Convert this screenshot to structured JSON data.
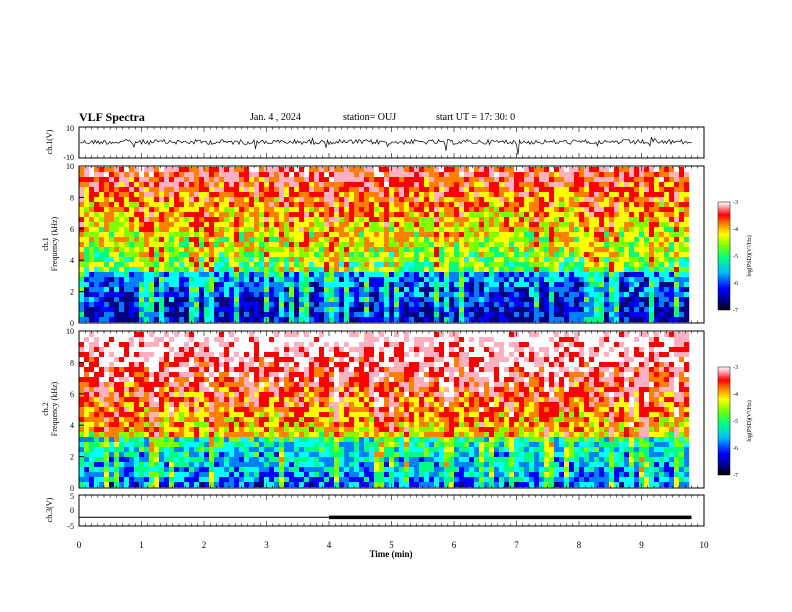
{
  "header": {
    "title": "VLF Spectra",
    "date": "Jan. 4 , 2024",
    "station": "station= OUJ",
    "start": "start UT = 17: 30: 0"
  },
  "colors": {
    "colormap": [
      "#000080",
      "#0000ff",
      "#0080ff",
      "#00ffff",
      "#00ff80",
      "#80ff00",
      "#ffff00",
      "#ff8000",
      "#ff0000",
      "#ffb0c0",
      "#ffffff"
    ],
    "waveform": "#000000"
  },
  "chart_data": [
    {
      "type": "line",
      "panel": "ch1-waveform",
      "ylabel": "ch.1(V)",
      "ylim": [
        -10,
        10
      ],
      "yticks": [
        "10",
        "-10"
      ],
      "x": [
        0,
        10
      ],
      "description_of_values": "noisy waveform around 0 V with spikes",
      "values": [
        0,
        0
      ]
    },
    {
      "type": "heatmap",
      "panel": "ch1-spectrogram",
      "ylabel": "ch.1\nFrequency (kHz)",
      "ylim": [
        0,
        10
      ],
      "yticks": [
        "0",
        "2",
        "4",
        "6",
        "8",
        "10"
      ],
      "xlim": [
        0,
        10
      ],
      "colorbar": {
        "label": "log(PSD)(V²/Hz)",
        "range": [
          -7,
          -3
        ],
        "ticks": [
          "-3",
          "-4",
          "-5",
          "-6",
          "-7"
        ]
      }
    },
    {
      "type": "heatmap",
      "panel": "ch2-spectrogram",
      "ylabel": "ch.2\nFrequency (kHz)",
      "ylim": [
        0,
        10
      ],
      "yticks": [
        "0",
        "2",
        "4",
        "6",
        "8",
        "10"
      ],
      "xlim": [
        0,
        10
      ],
      "colorbar": {
        "label": "log(PSD)(V²/Hz)",
        "range": [
          -7,
          -3
        ],
        "ticks": [
          "-3",
          "-4",
          "-5",
          "-6",
          "-7"
        ]
      }
    },
    {
      "type": "line",
      "panel": "ch3-level",
      "ylabel": "ch.3(V)",
      "ylim": [
        -5,
        5
      ],
      "yticks": [
        "5",
        "0",
        "-5"
      ],
      "x": [
        0,
        4,
        4,
        9.8
      ],
      "values": [
        -2.2,
        -2.2,
        -2.2,
        -2.2
      ]
    }
  ],
  "xaxis": {
    "label": "Time (min)",
    "ticks": [
      "0",
      "1",
      "2",
      "3",
      "4",
      "5",
      "6",
      "7",
      "8",
      "9",
      "10"
    ],
    "range": [
      0,
      10
    ]
  }
}
